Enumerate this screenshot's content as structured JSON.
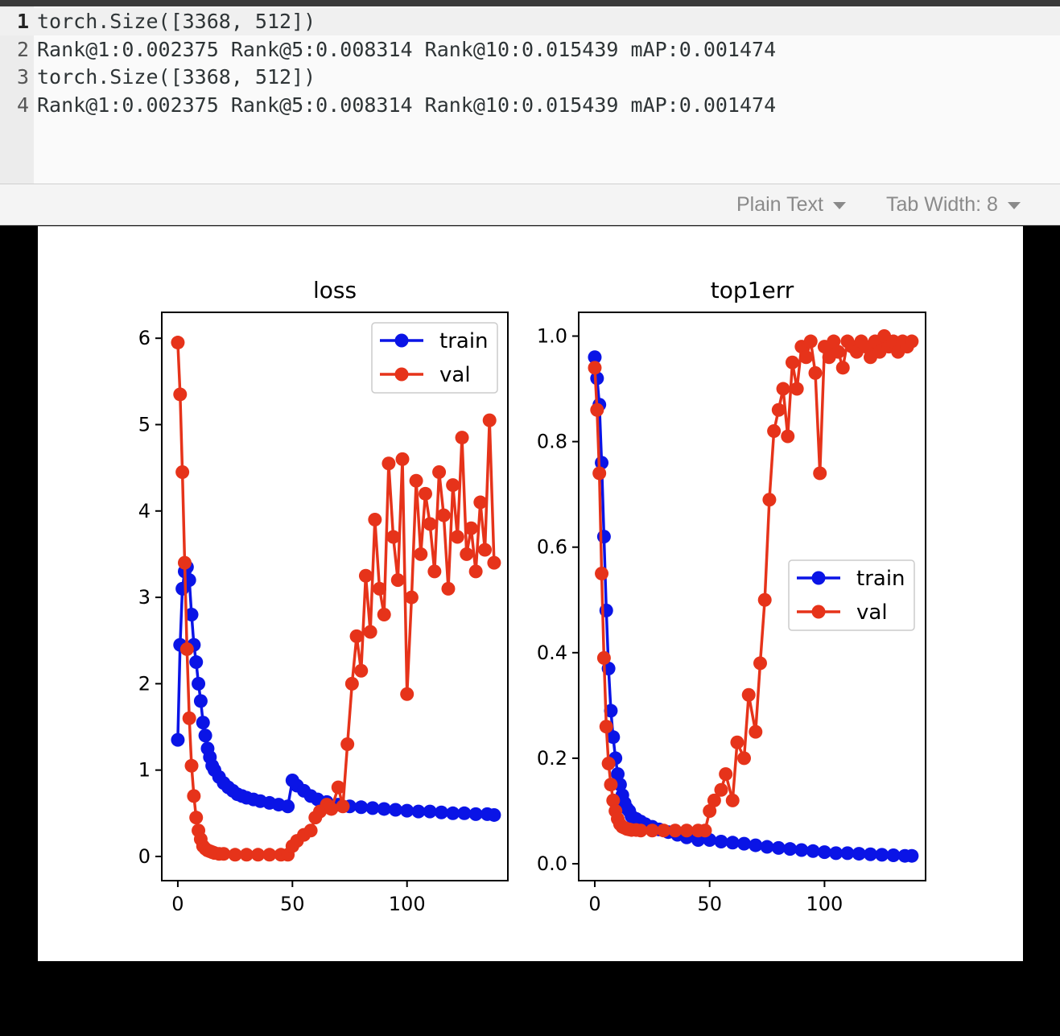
{
  "editor": {
    "lines": [
      {
        "number": "1",
        "text": "torch.Size([3368, 512])"
      },
      {
        "number": "2",
        "text": "Rank@1:0.002375 Rank@5:0.008314 Rank@10:0.015439 mAP:0.001474"
      },
      {
        "number": "3",
        "text": "torch.Size([3368, 512])"
      },
      {
        "number": "4",
        "text": "Rank@1:0.002375 Rank@5:0.008314 Rank@10:0.015439 mAP:0.001474"
      }
    ]
  },
  "statusbar": {
    "language": "Plain Text",
    "tab_width": "Tab Width: 8"
  },
  "colors": {
    "train": "#0a14e6",
    "val": "#e6331a"
  },
  "chart_data": [
    {
      "type": "line",
      "title": "loss",
      "xlim": [
        -7,
        144
      ],
      "ylim": [
        -0.28,
        6.3
      ],
      "xticks": [
        0,
        50,
        100
      ],
      "yticks": [
        0,
        1,
        2,
        3,
        4,
        5,
        6
      ],
      "legend": "top-right",
      "grid": false,
      "series": [
        {
          "name": "train",
          "x": [
            0,
            1,
            2,
            3,
            4,
            5,
            6,
            7,
            8,
            9,
            10,
            11,
            12,
            13,
            14,
            15,
            16,
            18,
            20,
            22,
            24,
            26,
            28,
            30,
            33,
            36,
            40,
            44,
            48,
            50,
            52,
            55,
            58,
            61,
            65,
            70,
            75,
            80,
            85,
            90,
            95,
            100,
            105,
            110,
            115,
            120,
            125,
            130,
            135,
            138
          ],
          "y": [
            1.35,
            2.45,
            3.1,
            3.3,
            3.35,
            3.2,
            2.8,
            2.45,
            2.25,
            2.0,
            1.8,
            1.55,
            1.4,
            1.25,
            1.15,
            1.05,
            1.0,
            0.92,
            0.85,
            0.8,
            0.76,
            0.72,
            0.7,
            0.68,
            0.66,
            0.64,
            0.62,
            0.6,
            0.58,
            0.88,
            0.82,
            0.76,
            0.7,
            0.66,
            0.63,
            0.6,
            0.58,
            0.57,
            0.56,
            0.55,
            0.54,
            0.53,
            0.52,
            0.52,
            0.51,
            0.5,
            0.5,
            0.49,
            0.49,
            0.48
          ]
        },
        {
          "name": "val",
          "x": [
            0,
            1,
            2,
            3,
            4,
            5,
            6,
            7,
            8,
            9,
            10,
            11,
            12,
            13,
            14,
            15,
            16,
            18,
            20,
            25,
            30,
            35,
            40,
            45,
            48,
            50,
            52,
            55,
            58,
            60,
            62,
            65,
            67,
            70,
            72,
            74,
            76,
            78,
            80,
            82,
            84,
            86,
            88,
            90,
            92,
            94,
            96,
            98,
            100,
            102,
            104,
            106,
            108,
            110,
            112,
            114,
            116,
            118,
            120,
            122,
            124,
            126,
            128,
            130,
            132,
            134,
            136,
            138
          ],
          "y": [
            5.95,
            5.35,
            4.45,
            3.4,
            2.4,
            1.6,
            1.05,
            0.7,
            0.45,
            0.3,
            0.2,
            0.12,
            0.09,
            0.07,
            0.06,
            0.05,
            0.04,
            0.03,
            0.03,
            0.02,
            0.02,
            0.02,
            0.02,
            0.02,
            0.02,
            0.12,
            0.18,
            0.25,
            0.3,
            0.45,
            0.52,
            0.6,
            0.55,
            0.8,
            0.58,
            1.3,
            2.0,
            2.55,
            2.15,
            3.25,
            2.6,
            3.9,
            3.1,
            2.8,
            4.55,
            3.7,
            3.2,
            4.6,
            1.88,
            3.0,
            4.35,
            3.5,
            4.2,
            3.85,
            3.3,
            4.45,
            3.95,
            3.1,
            4.3,
            3.7,
            4.85,
            3.5,
            3.8,
            3.3,
            4.1,
            3.55,
            5.05,
            3.4
          ]
        }
      ]
    },
    {
      "type": "line",
      "title": "top1err",
      "xlim": [
        -7,
        144
      ],
      "ylim": [
        -0.032,
        1.045
      ],
      "xticks": [
        0,
        50,
        100
      ],
      "yticks": [
        0.0,
        0.2,
        0.4,
        0.6,
        0.8,
        1.0
      ],
      "ytick_labels": [
        "0.0",
        "0.2",
        "0.4",
        "0.6",
        "0.8",
        "1.0"
      ],
      "legend": "center-right",
      "grid": false,
      "series": [
        {
          "name": "train",
          "x": [
            0,
            1,
            2,
            3,
            4,
            5,
            6,
            7,
            8,
            9,
            10,
            11,
            12,
            13,
            14,
            15,
            16,
            18,
            20,
            22,
            25,
            28,
            32,
            36,
            40,
            45,
            50,
            55,
            60,
            65,
            70,
            75,
            80,
            85,
            90,
            95,
            100,
            105,
            110,
            115,
            120,
            125,
            130,
            135,
            138
          ],
          "y": [
            0.96,
            0.92,
            0.87,
            0.76,
            0.62,
            0.48,
            0.37,
            0.29,
            0.24,
            0.2,
            0.17,
            0.15,
            0.13,
            0.115,
            0.105,
            0.1,
            0.09,
            0.085,
            0.08,
            0.075,
            0.07,
            0.065,
            0.06,
            0.055,
            0.05,
            0.045,
            0.045,
            0.042,
            0.04,
            0.038,
            0.035,
            0.032,
            0.03,
            0.028,
            0.026,
            0.024,
            0.022,
            0.02,
            0.02,
            0.019,
            0.018,
            0.017,
            0.016,
            0.015,
            0.015
          ]
        },
        {
          "name": "val",
          "x": [
            0,
            1,
            2,
            3,
            4,
            5,
            6,
            7,
            8,
            9,
            10,
            11,
            12,
            13,
            14,
            15,
            16,
            18,
            20,
            25,
            30,
            35,
            40,
            45,
            48,
            50,
            52,
            55,
            57,
            60,
            62,
            65,
            67,
            70,
            72,
            74,
            76,
            78,
            80,
            82,
            84,
            86,
            88,
            90,
            92,
            94,
            96,
            98,
            100,
            102,
            104,
            106,
            108,
            110,
            112,
            114,
            116,
            118,
            120,
            122,
            124,
            126,
            128,
            130,
            132,
            134,
            136,
            138
          ],
          "y": [
            0.94,
            0.86,
            0.74,
            0.55,
            0.39,
            0.26,
            0.19,
            0.15,
            0.12,
            0.1,
            0.085,
            0.075,
            0.07,
            0.068,
            0.066,
            0.065,
            0.064,
            0.064,
            0.063,
            0.063,
            0.063,
            0.063,
            0.063,
            0.063,
            0.063,
            0.1,
            0.12,
            0.14,
            0.17,
            0.12,
            0.23,
            0.2,
            0.32,
            0.25,
            0.38,
            0.5,
            0.69,
            0.82,
            0.86,
            0.9,
            0.81,
            0.95,
            0.9,
            0.98,
            0.96,
            0.99,
            0.93,
            0.74,
            0.98,
            0.96,
            0.99,
            0.97,
            0.94,
            0.99,
            0.98,
            0.97,
            0.99,
            0.98,
            0.96,
            0.99,
            0.97,
            1.0,
            0.98,
            0.99,
            0.97,
            0.99,
            0.98,
            0.99
          ]
        }
      ]
    }
  ]
}
